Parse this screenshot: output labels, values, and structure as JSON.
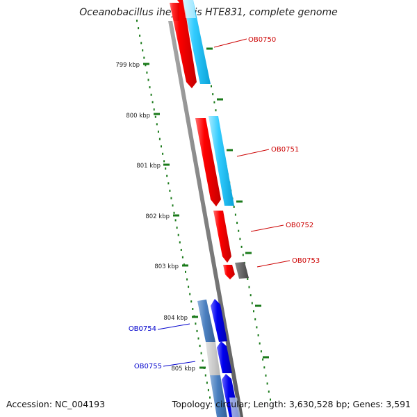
{
  "title": "Oceanobacillus iheyensis HTE831, complete genome",
  "footer": {
    "accession": "Accession: NC_004193",
    "topology": "Topology: circular; Length: 3,630,528 bp; Genes: 3,591"
  },
  "colors": {
    "ruler_tick": "#1a7a1a",
    "backbone": "#888888",
    "forward_gene": "#ff0000",
    "forward_cds": "#33ccff",
    "reverse_gene": "#0000ee",
    "reverse_cds": "#4a7fbf",
    "pseudo": "#555555",
    "forward_label": "#cc0000",
    "reverse_label": "#0000cc"
  },
  "ruler": {
    "ticks": [
      "799 kbp",
      "800 kbp",
      "801 kbp",
      "802 kbp",
      "803 kbp",
      "804 kbp",
      "805 kbp"
    ]
  },
  "genes": [
    {
      "label": "OB0750",
      "strand": "forward"
    },
    {
      "label": "OB0751",
      "strand": "forward"
    },
    {
      "label": "OB0752",
      "strand": "forward"
    },
    {
      "label": "OB0753",
      "strand": "forward"
    },
    {
      "label": "OB0754",
      "strand": "reverse"
    },
    {
      "label": "OB0755",
      "strand": "reverse"
    }
  ]
}
